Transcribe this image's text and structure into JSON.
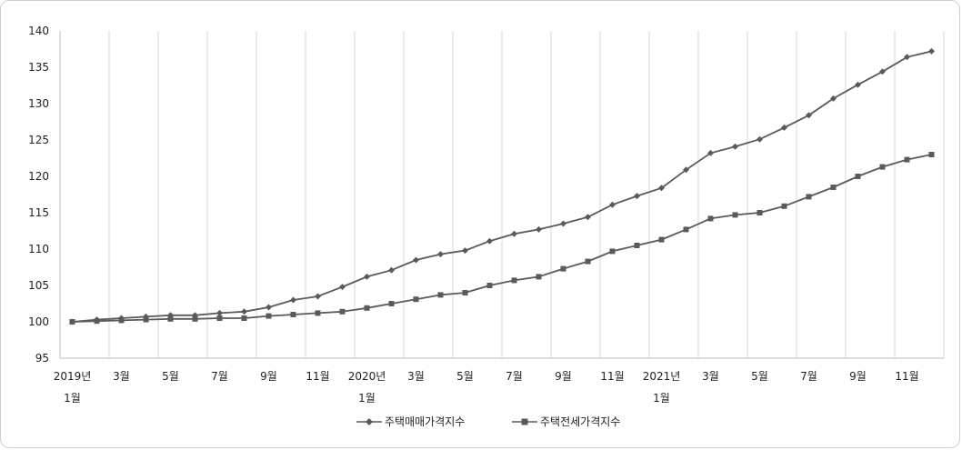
{
  "chart_data": {
    "type": "line",
    "title": "",
    "xlabel": "",
    "ylabel": "",
    "ylim": [
      95,
      140
    ],
    "yticks": [
      95,
      100,
      105,
      110,
      115,
      120,
      125,
      130,
      135,
      140
    ],
    "grid": "vertical",
    "legend_position": "bottom",
    "x_tick_labels": [
      {
        "index": 0,
        "line1": "2019년",
        "line2": "1월"
      },
      {
        "index": 2,
        "line1": "3월",
        "line2": ""
      },
      {
        "index": 4,
        "line1": "5월",
        "line2": ""
      },
      {
        "index": 6,
        "line1": "7월",
        "line2": ""
      },
      {
        "index": 8,
        "line1": "9월",
        "line2": ""
      },
      {
        "index": 10,
        "line1": "11월",
        "line2": ""
      },
      {
        "index": 12,
        "line1": "2020년",
        "line2": "1월"
      },
      {
        "index": 14,
        "line1": "3월",
        "line2": ""
      },
      {
        "index": 16,
        "line1": "5월",
        "line2": ""
      },
      {
        "index": 18,
        "line1": "7월",
        "line2": ""
      },
      {
        "index": 20,
        "line1": "9월",
        "line2": ""
      },
      {
        "index": 22,
        "line1": "11월",
        "line2": ""
      },
      {
        "index": 24,
        "line1": "2021년",
        "line2": "1월"
      },
      {
        "index": 26,
        "line1": "3월",
        "line2": ""
      },
      {
        "index": 28,
        "line1": "5월",
        "line2": ""
      },
      {
        "index": 30,
        "line1": "7월",
        "line2": ""
      },
      {
        "index": 32,
        "line1": "9월",
        "line2": ""
      },
      {
        "index": 34,
        "line1": "11월",
        "line2": ""
      }
    ],
    "series": [
      {
        "name": "주택매매가격지수",
        "marker": "diamond",
        "color": "#5a5a5a",
        "values": [
          100.0,
          100.3,
          100.5,
          100.7,
          100.9,
          100.9,
          101.2,
          101.4,
          102.0,
          103.0,
          103.5,
          104.8,
          106.2,
          107.1,
          108.5,
          109.3,
          109.8,
          111.1,
          112.1,
          112.7,
          113.5,
          114.4,
          116.1,
          117.3,
          118.4,
          120.9,
          123.2,
          124.1,
          125.1,
          126.7,
          128.4,
          130.7,
          132.6,
          134.4,
          136.4,
          137.2
        ]
      },
      {
        "name": "주택전세가격지수",
        "marker": "square",
        "color": "#5a5a5a",
        "values": [
          100.0,
          100.1,
          100.2,
          100.3,
          100.4,
          100.4,
          100.5,
          100.5,
          100.8,
          101.0,
          101.2,
          101.4,
          101.9,
          102.5,
          103.1,
          103.7,
          104.0,
          105.0,
          105.7,
          106.2,
          107.3,
          108.3,
          109.7,
          110.5,
          111.3,
          112.7,
          114.2,
          114.7,
          115.0,
          115.9,
          117.2,
          118.5,
          120.0,
          121.3,
          122.3,
          123.0
        ]
      }
    ]
  }
}
